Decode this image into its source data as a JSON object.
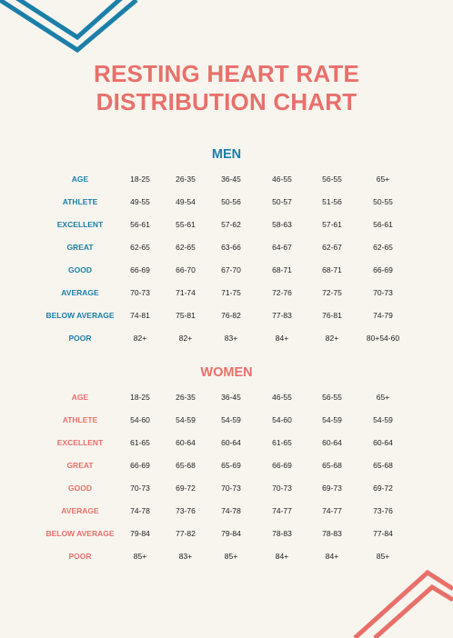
{
  "title": {
    "line1": "RESTING HEART RATE",
    "line2": "DISTRIBUTION CHART"
  },
  "colors": {
    "blue": "#1b7fa8",
    "coral": "#e8706a",
    "background": "#f8f5ef"
  },
  "men": {
    "heading": "MEN",
    "rows": [
      {
        "label": "AGE",
        "values": [
          "18-25",
          "26-35",
          "36-45",
          "46-55",
          "56-55",
          "65+"
        ]
      },
      {
        "label": "ATHLETE",
        "values": [
          "49-55",
          "49-54",
          "50-56",
          "50-57",
          "51-56",
          "50-55"
        ]
      },
      {
        "label": "EXCELLENT",
        "values": [
          "56-61",
          "55-61",
          "57-62",
          "58-63",
          "57-61",
          "56-61"
        ]
      },
      {
        "label": "GREAT",
        "values": [
          "62-65",
          "62-65",
          "63-66",
          "64-67",
          "62-67",
          "62-65"
        ]
      },
      {
        "label": "GOOD",
        "values": [
          "66-69",
          "66-70",
          "67-70",
          "68-71",
          "68-71",
          "66-69"
        ]
      },
      {
        "label": "AVERAGE",
        "values": [
          "70-73",
          "71-74",
          "71-75",
          "72-76",
          "72-75",
          "70-73"
        ]
      },
      {
        "label": "BELOW AVERAGE",
        "values": [
          "74-81",
          "75-81",
          "76-82",
          "77-83",
          "76-81",
          "74-79"
        ]
      },
      {
        "label": "POOR",
        "values": [
          "82+",
          "82+",
          "83+",
          "84+",
          "82+",
          "80+54-60"
        ]
      }
    ]
  },
  "women": {
    "heading": "WOMEN",
    "rows": [
      {
        "label": "AGE",
        "values": [
          "18-25",
          "26-35",
          "36-45",
          "46-55",
          "56-55",
          "65+"
        ]
      },
      {
        "label": "ATHLETE",
        "values": [
          "54-60",
          "54-59",
          "54-59",
          "54-60",
          "54-59",
          "54-59"
        ]
      },
      {
        "label": "EXCELLENT",
        "values": [
          "61-65",
          "60-64",
          "60-64",
          "61-65",
          "60-64",
          "60-64"
        ]
      },
      {
        "label": "GREAT",
        "values": [
          "66-69",
          "65-68",
          "65-69",
          "66-69",
          "65-68",
          "65-68"
        ]
      },
      {
        "label": "GOOD",
        "values": [
          "70-73",
          "69-72",
          "70-73",
          "70-73",
          "69-73",
          "69-72"
        ]
      },
      {
        "label": "AVERAGE",
        "values": [
          "74-78",
          "73-76",
          "74-78",
          "74-77",
          "74-77",
          "73-76"
        ]
      },
      {
        "label": "BELOW AVERAGE",
        "values": [
          "79-84",
          "77-82",
          "79-84",
          "78-83",
          "78-83",
          "77-84"
        ]
      },
      {
        "label": "POOR",
        "values": [
          "85+",
          "83+",
          "85+",
          "84+",
          "84+",
          "85+"
        ]
      }
    ]
  }
}
